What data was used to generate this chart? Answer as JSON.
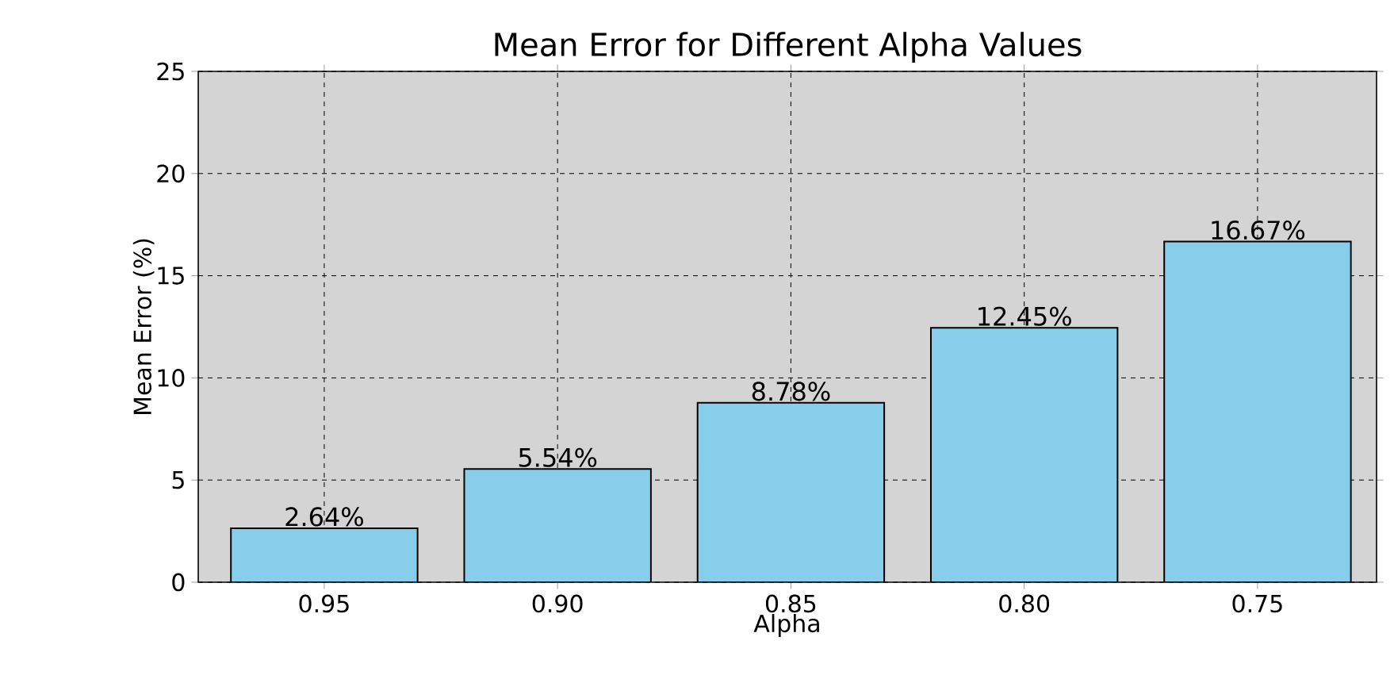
{
  "chart_data": {
    "type": "bar",
    "title": "Mean Error for Different Alpha Values",
    "xlabel": "Alpha",
    "ylabel": "Mean Error (%)",
    "categories": [
      "0.95",
      "0.90",
      "0.85",
      "0.80",
      "0.75"
    ],
    "values": [
      2.64,
      5.54,
      8.78,
      12.45,
      16.67
    ],
    "value_labels": [
      "2.64%",
      "5.54%",
      "8.78%",
      "12.45%",
      "16.67%"
    ],
    "color": "#87ceeb",
    "ylim": [
      0,
      25
    ],
    "yticks": [
      0,
      5,
      10,
      15,
      20,
      25
    ],
    "grid": true
  }
}
